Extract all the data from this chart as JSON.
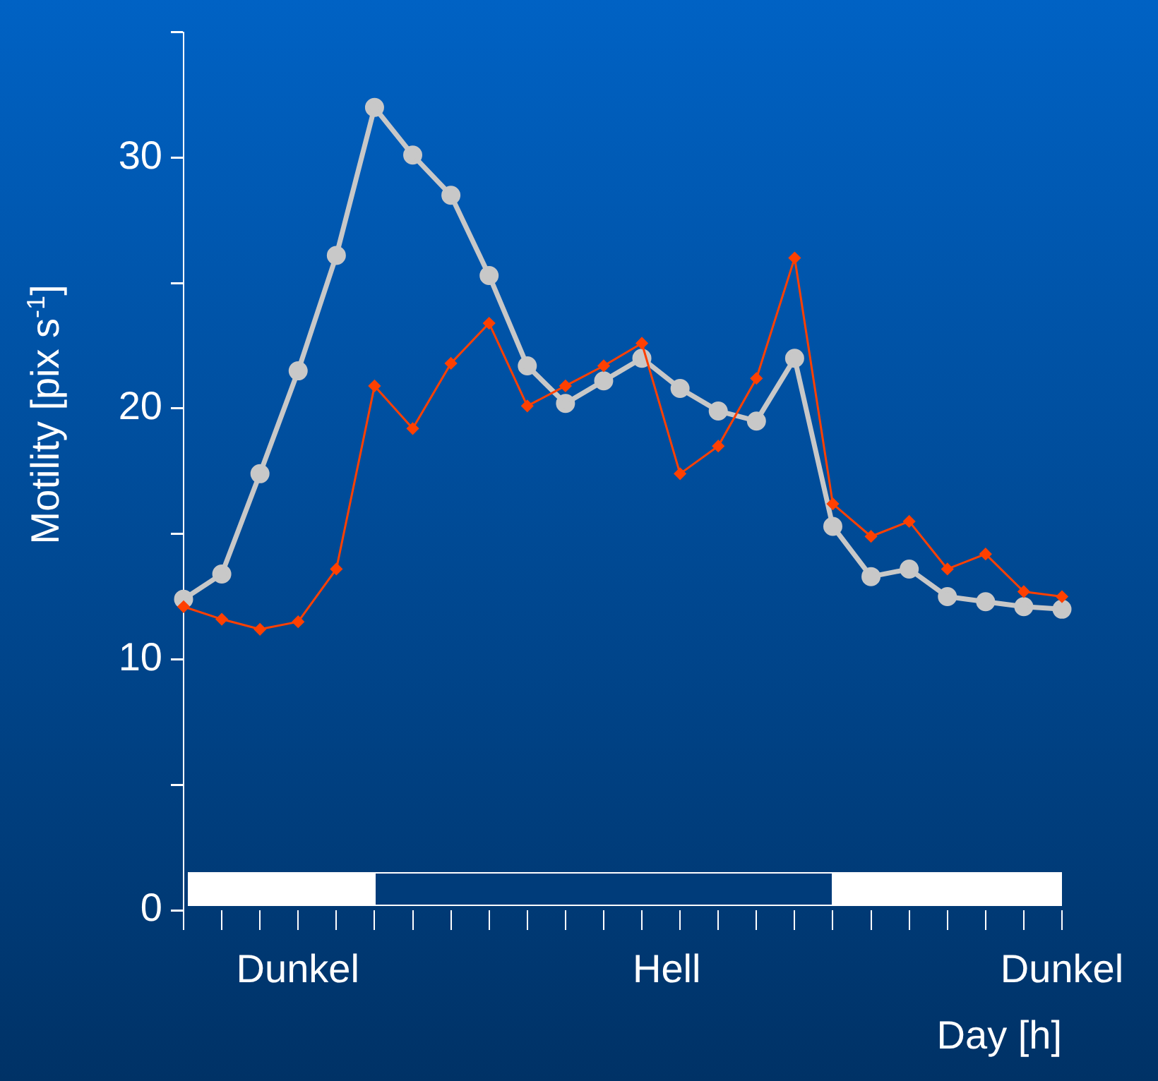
{
  "chart_data": {
    "type": "line",
    "xlabel": "Day [h]",
    "ylabel": "Motility  [pix s$^{-1}$]",
    "categories": [
      null,
      null,
      null,
      null,
      null,
      null,
      null,
      null,
      null,
      null,
      null,
      null,
      null,
      null,
      null,
      null,
      null,
      null,
      null,
      null,
      null,
      null,
      null,
      null
    ],
    "ylim": [
      0,
      35
    ],
    "yticks": [
      0,
      {
        "value": 5,
        "label": null
      },
      10,
      {
        "value": 15,
        "label": null
      },
      20,
      {
        "value": 25,
        "label": null
      },
      30,
      {
        "value": 35,
        "label": null
      }
    ],
    "grid": false,
    "legend": false,
    "series": [
      {
        "color": "#c8c8c8",
        "marker": "circle",
        "values": [
          12.4,
          13.4,
          17.4,
          21.5,
          26.1,
          32.0,
          30.1,
          28.5,
          25.3,
          21.7,
          20.2,
          21.1,
          22.0,
          20.8,
          19.9,
          19.5,
          22.0,
          15.3,
          13.3,
          13.6,
          12.5,
          12.3,
          12.1,
          12.0
        ]
      },
      {
        "color": "#ff4000",
        "marker": "diamond",
        "values": [
          12.1,
          11.6,
          11.2,
          11.5,
          13.6,
          20.9,
          19.2,
          21.8,
          23.4,
          20.1,
          20.9,
          21.7,
          22.6,
          17.4,
          18.5,
          21.2,
          26.0,
          16.2,
          14.9,
          15.5,
          13.6,
          14.2,
          12.7,
          12.5
        ]
      }
    ],
    "annotations": [
      "Dunkel",
      "Hell",
      "Dunkel"
    ]
  }
}
